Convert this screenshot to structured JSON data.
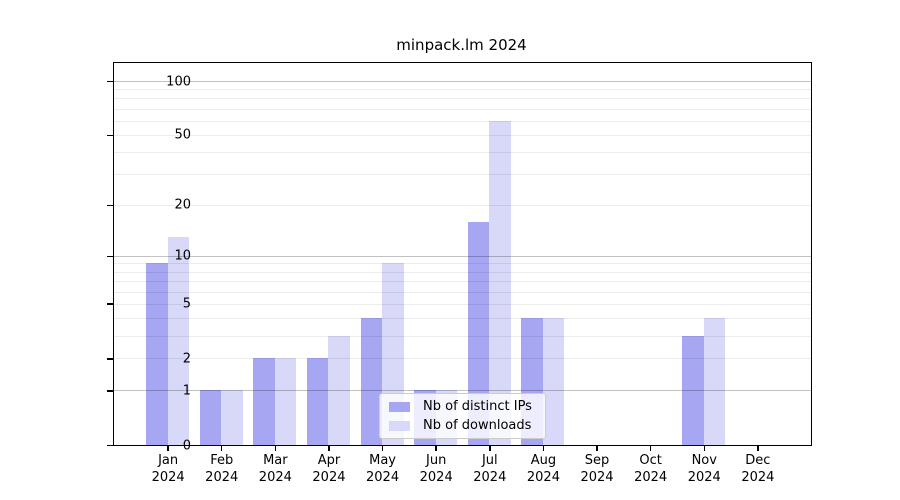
{
  "title": "minpack.lm 2024",
  "year": "2024",
  "chart_data": {
    "type": "bar",
    "title": "minpack.lm 2024",
    "categories": [
      "Jan",
      "Feb",
      "Mar",
      "Apr",
      "May",
      "Jun",
      "Jul",
      "Aug",
      "Sep",
      "Oct",
      "Nov",
      "Dec"
    ],
    "categories_year": "2024",
    "series": [
      {
        "name": "Nb of distinct IPs",
        "color": "#a6a6f2",
        "values": [
          9,
          1,
          2,
          2,
          4,
          1,
          16,
          4,
          0,
          0,
          3,
          0
        ]
      },
      {
        "name": "Nb of downloads",
        "color": "#d8d8f8",
        "values": [
          13,
          1,
          2,
          3,
          9,
          1,
          60,
          4,
          0,
          0,
          4,
          0
        ]
      }
    ],
    "xlabel": "",
    "ylabel": "",
    "yscale": "log1p",
    "ylim": [
      0,
      126
    ],
    "yticks": [
      0,
      1,
      2,
      5,
      10,
      20,
      50,
      100
    ],
    "major_gridlines": [
      1,
      10,
      100
    ],
    "minor_gridlines": [
      2,
      3,
      4,
      5,
      6,
      7,
      8,
      9,
      20,
      30,
      40,
      50,
      60,
      70,
      80,
      90
    ],
    "grid": "horizontal",
    "legend_position": "lower center (inside plot)"
  },
  "legend": {
    "items": [
      {
        "label": "Nb of distinct IPs",
        "color": "#a6a6f2"
      },
      {
        "label": "Nb of downloads",
        "color": "#d8d8f8"
      }
    ]
  },
  "colors": {
    "background": "#ffffff",
    "spine": "#000000",
    "major_grid": "#c2c2c2",
    "minor_grid": "#ececec",
    "series_ips": "#a6a6f2",
    "series_downloads": "#d8d8f8"
  }
}
